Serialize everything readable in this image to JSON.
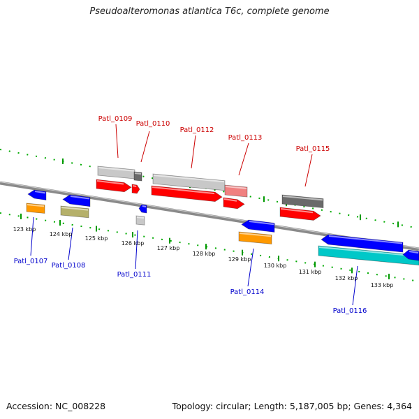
{
  "title": "Pseudoalteromonas atlantica T6c, complete genome",
  "accession": "Accession: NC_008228",
  "summary": "Topology: circular; Length: 5,187,005 bp; Genes: 4,364",
  "colors": {
    "upper_label": "#cc0000",
    "lower_label": "#0000cc",
    "ruler_tick": "#009900",
    "backbone": "#7a7a7a",
    "red": "#ff0000",
    "blue": "#0000ff",
    "orange": "#ff9900",
    "olive": "#b5b06a",
    "grey": "#c8c8c8",
    "dark_grey": "#6a6a6a",
    "pink": "#f08080",
    "cyan": "#00c8c8"
  },
  "scale_labels": [
    "123 kbp",
    "124 kbp",
    "125 kbp",
    "126 kbp",
    "127 kbp",
    "128 kbp",
    "129 kbp",
    "130 kbp",
    "131 kbp",
    "132 kbp",
    "133 kbp"
  ],
  "upper_genes": [
    "Patl_0109",
    "Patl_0110",
    "Patl_0112",
    "Patl_0113",
    "Patl_0115"
  ],
  "lower_genes": [
    "Patl_0107",
    "Patl_0108",
    "Patl_0111",
    "Patl_0114",
    "Patl_0116"
  ]
}
